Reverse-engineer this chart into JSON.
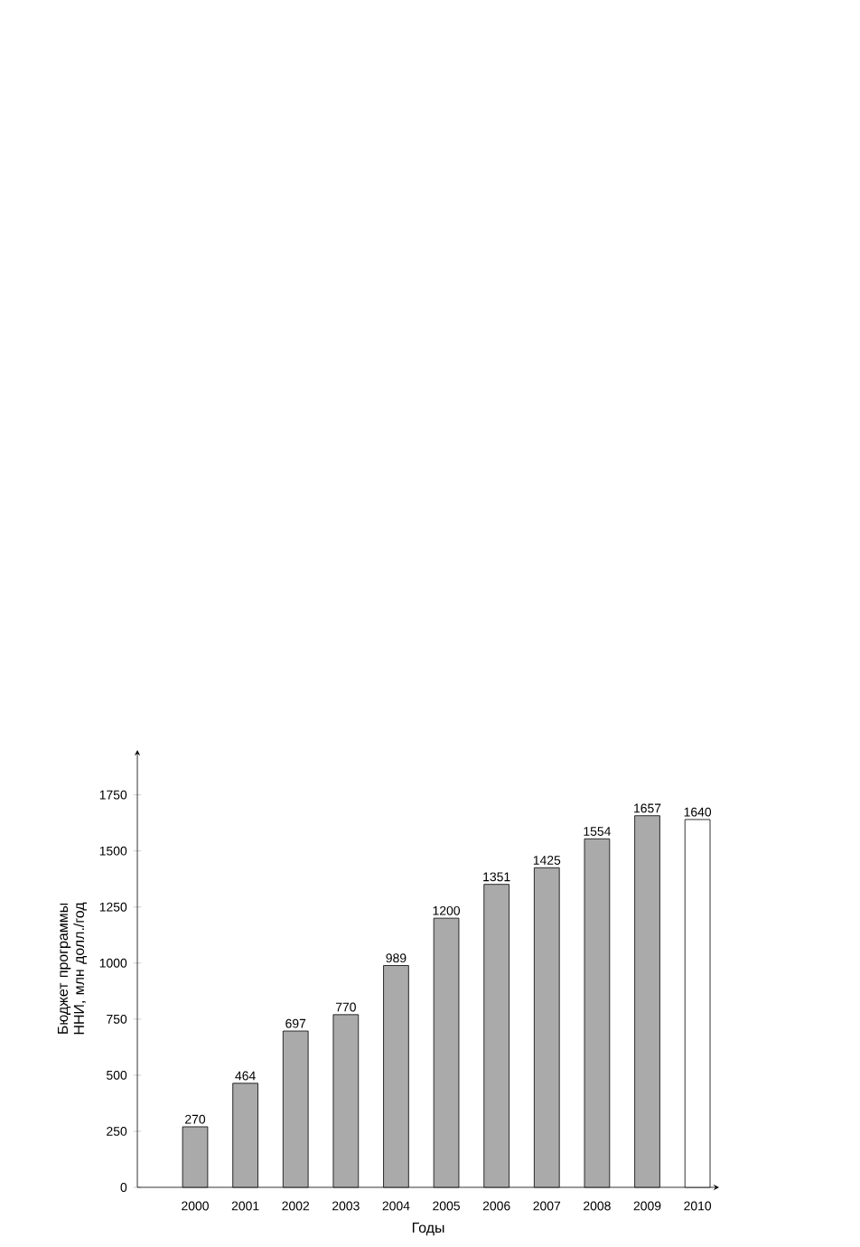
{
  "chart_data": {
    "type": "bar",
    "xlabel": "Годы",
    "ylabel": "Бюджет программы ННИ, млн долл./год",
    "categories": [
      "2000",
      "2001",
      "2002",
      "2003",
      "2004",
      "2005",
      "2006",
      "2007",
      "2008",
      "2009",
      "2010"
    ],
    "values": [
      270,
      464,
      697,
      770,
      989,
      1200,
      1351,
      1425,
      1554,
      1657,
      1640
    ],
    "colors": [
      "#aaaaaa",
      "#aaaaaa",
      "#aaaaaa",
      "#aaaaaa",
      "#aaaaaa",
      "#aaaaaa",
      "#aaaaaa",
      "#aaaaaa",
      "#aaaaaa",
      "#aaaaaa",
      "#ffffff"
    ],
    "ylim": [
      0,
      1950
    ],
    "yticks": [
      0,
      250,
      500,
      750,
      1000,
      1250,
      1500,
      1750
    ],
    "data_labels": true,
    "grid": false
  }
}
